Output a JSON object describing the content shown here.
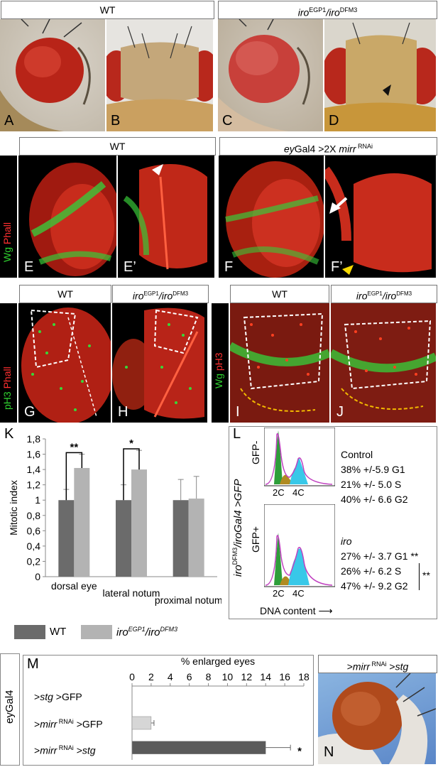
{
  "row1": {
    "header_left": "WT",
    "header_right_genotype": "iro",
    "header_right_sup1": "EGP1",
    "header_right_sep": "/iro",
    "header_right_sup2": "DFM3",
    "panels": [
      "A",
      "B",
      "C",
      "D"
    ]
  },
  "row2": {
    "side_label_green": "Wg",
    "side_label_red": "Phall",
    "header_left": "WT",
    "header_right_pre": "ey",
    "header_right_mid": "Gal4 >2X ",
    "header_right_gene": "mirr",
    "header_right_sup": " RNAi",
    "panels": [
      "E",
      "E’",
      "F",
      "F’"
    ]
  },
  "row3": {
    "side_label_left_green": "pH3",
    "side_label_left_red": "Phall",
    "side_label_right_green": "Wg",
    "side_label_right_red": "pH3",
    "header_wt": "WT",
    "header_iro_gene": "iro",
    "header_iro_sup1": "EGP1",
    "header_iro_sep": "/iro",
    "header_iro_sup2": "DFM3",
    "panels": [
      "G",
      "H",
      "I",
      "J"
    ]
  },
  "panel_K": {
    "letter": "K",
    "chart_data": {
      "type": "bar",
      "categories": [
        "dorsal eye",
        "lateral notum",
        "proximal notum"
      ],
      "series": [
        {
          "name": "WT",
          "values": [
            1.0,
            1.0,
            1.0
          ],
          "errors": [
            0.14,
            0.2,
            0.27
          ]
        },
        {
          "name": "iro EGP1/iro DFM3",
          "values": [
            1.42,
            1.4,
            1.02
          ],
          "errors": [
            0.18,
            0.25,
            0.29
          ]
        }
      ],
      "ylabel": "Mitotic index",
      "ylim": [
        0,
        1.8
      ],
      "yticks": [
        "0",
        "0,2",
        "0,4",
        "0,6",
        "0,8",
        "1",
        "1,2",
        "1,4",
        "1,6",
        "1,8"
      ],
      "significance": [
        "**",
        "*",
        ""
      ],
      "colors": [
        "#6b6b6b",
        "#b3b3b3"
      ]
    },
    "legend_wt": "WT",
    "legend_iro_gene": "iro",
    "legend_iro_sup1": "EGP1",
    "legend_iro_sep": "/iro",
    "legend_iro_sup2": "DFM3"
  },
  "panel_L": {
    "letter": "L",
    "side_gene": "iro",
    "side_sup": "DFM3",
    "side_rest": "/iroGal4 >GFP",
    "gfp_minus": "GFP-",
    "gfp_plus": "GFP+",
    "axis_2c": "2C",
    "axis_4c": "4C",
    "xlabel": "DNA content",
    "control_title": "Control",
    "control_lines": [
      "38% +/-5.9  G1",
      "21% +/- 5.0  S",
      "40% +/- 6.6 G2"
    ],
    "iro_title": "iro",
    "iro_lines": [
      "27% +/- 3.7 G1 **",
      "26% +/- 6.2 S",
      "47% +/- 9.2 G2"
    ],
    "iro_sig": "**"
  },
  "panel_M": {
    "letter": "M",
    "side_label": "eyGal4",
    "chart_data": {
      "type": "bar",
      "orientation": "horizontal",
      "title": "% enlarged eyes",
      "categories": [
        ">stg >GFP",
        ">mirr RNAi >GFP",
        ">mirr RNAi >stg"
      ],
      "values": [
        0,
        2,
        14
      ],
      "errors": [
        0,
        0.3,
        2.6
      ],
      "xlim": [
        0,
        18
      ],
      "xticks": [
        "0",
        "2",
        "4",
        "6",
        "8",
        "10",
        "12",
        "14",
        "16",
        "18"
      ],
      "significance": [
        "",
        "",
        "*"
      ],
      "colors": [
        "#d6d6d6",
        "#d6d6d6",
        "#5a5a5a"
      ]
    },
    "cat1_gene": "stg",
    "cat1_rest": " >GFP",
    "cat2_gene": "mirr",
    "cat2_sup": " RNAi",
    "cat2_rest": " >GFP",
    "cat3_gene": "mirr",
    "cat3_sup": " RNAi",
    "cat3_rest": " >",
    "cat3_gene2": "stg"
  },
  "panel_N": {
    "letter": "N",
    "header_gene": "mirr",
    "header_sup": " RNAi",
    "header_gene2": "stg"
  }
}
